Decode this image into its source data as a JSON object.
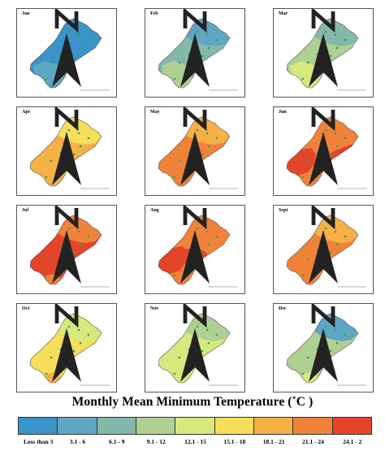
{
  "legend": {
    "title": "Monthly Mean Minimum Temperature (˚C )",
    "classes": [
      {
        "label": "Less than 3",
        "color": "#3a93c9"
      },
      {
        "label": "3.1 - 6",
        "color": "#5ea6c2"
      },
      {
        "label": "6.1 - 9",
        "color": "#84b8ab"
      },
      {
        "label": "9.1 - 12",
        "color": "#afcf93"
      },
      {
        "label": "12.1 - 15",
        "color": "#d7e87f"
      },
      {
        "label": "15.1 - 18",
        "color": "#f6de5a"
      },
      {
        "label": "18.1 - 21",
        "color": "#f6b046"
      },
      {
        "label": "21.1 - 24",
        "color": "#f18239"
      },
      {
        "label": "24.1 - 2",
        "color": "#e4452a"
      }
    ]
  },
  "maps": [
    {
      "month": "Jan",
      "base_class": 0,
      "overlays": [
        {
          "class": 1,
          "shape": "south"
        }
      ]
    },
    {
      "month": "Feb",
      "base_class": 2,
      "overlays": [
        {
          "class": 1,
          "shape": "north"
        },
        {
          "class": 3,
          "shape": "south"
        }
      ]
    },
    {
      "month": "Mar",
      "base_class": 3,
      "overlays": [
        {
          "class": 2,
          "shape": "north"
        },
        {
          "class": 4,
          "shape": "south"
        },
        {
          "class": 2,
          "shape": "blob"
        }
      ]
    },
    {
      "month": "Apr",
      "base_class": 6,
      "overlays": [
        {
          "class": 5,
          "shape": "north"
        },
        {
          "class": 4,
          "shape": "blob"
        }
      ]
    },
    {
      "month": "May",
      "base_class": 7,
      "overlays": [
        {
          "class": 6,
          "shape": "north"
        },
        {
          "class": 5,
          "shape": "blob"
        }
      ]
    },
    {
      "month": "Jun",
      "base_class": 7,
      "overlays": [
        {
          "class": 8,
          "shape": "west"
        },
        {
          "class": 8,
          "shape": "east-band"
        },
        {
          "class": 6,
          "shape": "blob"
        }
      ]
    },
    {
      "month": "Jul",
      "base_class": 8,
      "overlays": [
        {
          "class": 7,
          "shape": "north"
        },
        {
          "class": 7,
          "shape": "south-tip"
        }
      ]
    },
    {
      "month": "Aug",
      "base_class": 7,
      "overlays": [
        {
          "class": 8,
          "shape": "west"
        },
        {
          "class": 8,
          "shape": "center"
        }
      ]
    },
    {
      "month": "Sept",
      "base_class": 7,
      "overlays": [
        {
          "class": 6,
          "shape": "north"
        },
        {
          "class": 8,
          "shape": "blob-small"
        }
      ]
    },
    {
      "month": "Oct",
      "base_class": 5,
      "overlays": [
        {
          "class": 4,
          "shape": "north"
        },
        {
          "class": 6,
          "shape": "blob"
        },
        {
          "class": 6,
          "shape": "south-tip"
        }
      ]
    },
    {
      "month": "Nov",
      "base_class": 4,
      "overlays": [
        {
          "class": 3,
          "shape": "north"
        },
        {
          "class": 5,
          "shape": "blob"
        }
      ]
    },
    {
      "month": "Dec",
      "base_class": 3,
      "overlays": [
        {
          "class": 1,
          "shape": "north"
        },
        {
          "class": 2,
          "shape": "blob"
        },
        {
          "class": 4,
          "shape": "south-tip"
        }
      ]
    }
  ]
}
